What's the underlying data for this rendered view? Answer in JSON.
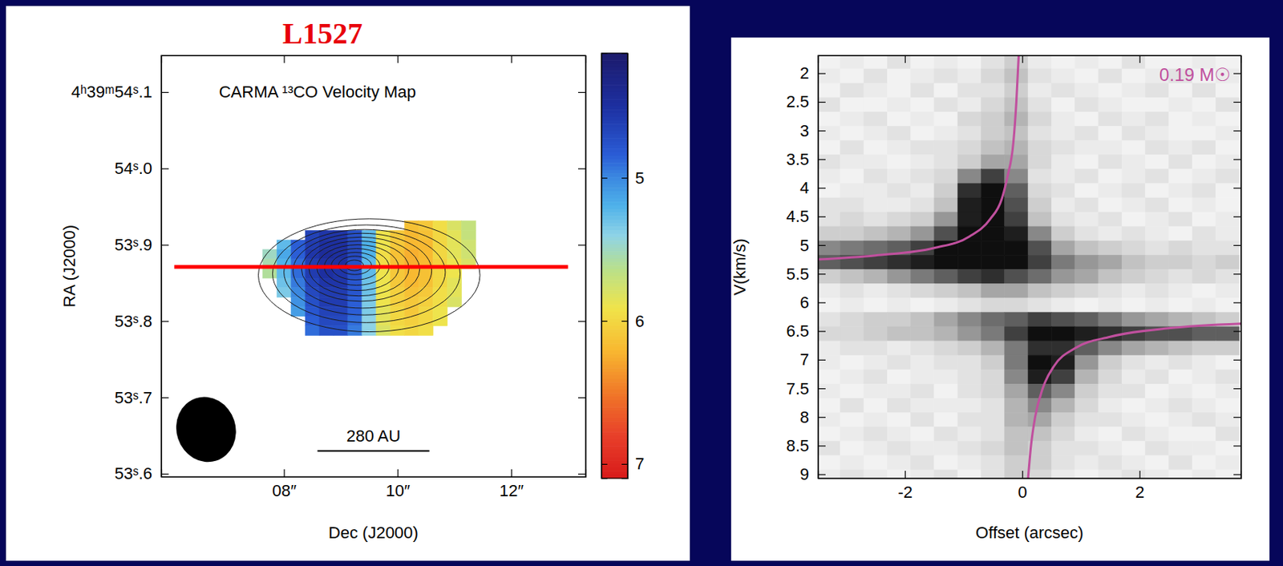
{
  "chart_data": [
    {
      "type": "heatmap",
      "annotation": "L1527",
      "title": "CARMA ¹³CO Velocity Map",
      "x_label": "Dec (J2000)",
      "y_label": "RA (J2000)",
      "xlim": [
        5.84,
        13.31
      ],
      "xticks": [
        {
          "value": 8,
          "label": "08″"
        },
        {
          "value": 10,
          "label": "10″"
        },
        {
          "value": 12,
          "label": "12″"
        }
      ],
      "ylim": [
        53.596,
        54.148
      ],
      "yticks": [
        {
          "value": 54.1,
          "label": "4ʰ39ᵐ54ˢ.1"
        },
        {
          "value": 54.0,
          "label": "54ˢ.0"
        },
        {
          "value": 53.9,
          "label": "53ˢ.9"
        },
        {
          "value": 53.8,
          "label": "53ˢ.8"
        },
        {
          "value": 53.7,
          "label": "53ˢ.7"
        },
        {
          "value": 53.6,
          "label": "53ˢ.6"
        }
      ],
      "x": [
        7.75,
        8.0,
        8.25,
        8.5,
        8.75,
        9.0,
        9.25,
        9.5,
        9.75,
        10.0,
        10.25,
        10.5,
        10.75,
        11.0,
        11.25
      ],
      "y": [
        53.925,
        53.9125,
        53.9,
        53.8875,
        53.875,
        53.8625,
        53.85,
        53.8375,
        53.825,
        53.8125,
        53.8,
        53.7875
      ],
      "values": [
        [
          null,
          null,
          null,
          null,
          null,
          null,
          null,
          null,
          null,
          null,
          6.15,
          6.1,
          5.95,
          5.8,
          5.7
        ],
        [
          null,
          null,
          null,
          4.65,
          4.55,
          4.55,
          4.75,
          5.25,
          5.9,
          6.1,
          6.2,
          6.15,
          6.0,
          5.85,
          5.7
        ],
        [
          null,
          5.25,
          4.85,
          4.6,
          4.5,
          4.5,
          4.7,
          5.2,
          5.9,
          6.1,
          6.2,
          6.2,
          6.0,
          5.85,
          5.75
        ],
        [
          5.5,
          5.15,
          4.85,
          4.55,
          4.45,
          4.5,
          4.7,
          5.2,
          5.95,
          6.15,
          6.25,
          6.2,
          6.0,
          5.85,
          5.75
        ],
        [
          5.55,
          5.2,
          4.9,
          4.6,
          4.5,
          4.5,
          4.75,
          5.25,
          5.95,
          6.15,
          6.25,
          6.2,
          6.05,
          5.9,
          5.8
        ],
        [
          5.6,
          5.25,
          4.9,
          4.6,
          4.5,
          4.55,
          4.75,
          5.25,
          5.9,
          6.1,
          6.2,
          6.15,
          6.0,
          5.9,
          null
        ],
        [
          null,
          5.3,
          4.95,
          4.65,
          4.55,
          4.55,
          4.8,
          5.3,
          5.9,
          6.1,
          6.2,
          6.15,
          6.0,
          5.85,
          null
        ],
        [
          null,
          5.35,
          5.0,
          4.7,
          4.6,
          4.6,
          4.8,
          5.3,
          5.9,
          6.05,
          6.15,
          6.1,
          5.95,
          5.85,
          null
        ],
        [
          null,
          null,
          5.05,
          4.75,
          4.6,
          4.6,
          4.85,
          5.35,
          5.9,
          6.05,
          6.1,
          6.05,
          5.95,
          5.8,
          null
        ],
        [
          null,
          null,
          5.1,
          4.8,
          4.65,
          4.65,
          4.85,
          5.35,
          5.85,
          6.0,
          6.1,
          6.0,
          5.9,
          null,
          null
        ],
        [
          null,
          null,
          null,
          4.85,
          4.7,
          4.7,
          4.9,
          5.4,
          5.85,
          6.0,
          6.05,
          6.0,
          5.9,
          null,
          null
        ],
        [
          null,
          null,
          null,
          4.9,
          4.75,
          4.75,
          4.95,
          5.4,
          5.8,
          5.95,
          6.0,
          5.95,
          null,
          null,
          null
        ]
      ],
      "colorbar": {
        "range": [
          4.13,
          7.1
        ],
        "ticks": [
          5,
          6,
          7
        ]
      },
      "contours": [
        {
          "center": [
            9.5,
            53.86
          ],
          "rx": 1.95,
          "ry": 0.074
        },
        {
          "center": [
            9.45,
            53.862
          ],
          "rx": 1.65,
          "ry": 0.064
        },
        {
          "center": [
            9.42,
            53.864
          ],
          "rx": 1.42,
          "ry": 0.056
        },
        {
          "center": [
            9.38,
            53.866
          ],
          "rx": 1.22,
          "ry": 0.049
        },
        {
          "center": [
            9.35,
            53.868
          ],
          "rx": 1.04,
          "ry": 0.042
        },
        {
          "center": [
            9.32,
            53.869
          ],
          "rx": 0.88,
          "ry": 0.036
        },
        {
          "center": [
            9.3,
            53.87
          ],
          "rx": 0.72,
          "ry": 0.03
        },
        {
          "center": [
            9.28,
            53.871
          ],
          "rx": 0.57,
          "ry": 0.024
        },
        {
          "center": [
            9.26,
            53.872
          ],
          "rx": 0.43,
          "ry": 0.018
        },
        {
          "center": [
            9.25,
            53.873
          ],
          "rx": 0.29,
          "ry": 0.012
        },
        {
          "center": [
            9.24,
            53.873
          ],
          "rx": 0.16,
          "ry": 0.007
        }
      ],
      "cut": {
        "x": [
          6.07,
          13.0
        ],
        "y": 53.871,
        "color": "#ff0000"
      },
      "beam": {
        "center": [
          6.63,
          53.658
        ],
        "width": 1.04,
        "height": 0.086
      },
      "scale_bar": {
        "label": "280 AU",
        "x": [
          8.59,
          10.56
        ],
        "y": 53.63
      }
    },
    {
      "type": "image",
      "annotation": "0.19 M☉",
      "x_label": "Offset (arcsec)",
      "y_label": "V(km/s)",
      "xlim": [
        -3.48,
        3.73
      ],
      "xticks": [
        -2,
        0,
        2
      ],
      "ylim": [
        9.07,
        1.69
      ],
      "yticks": [
        2,
        2.5,
        3,
        3.5,
        4,
        4.5,
        5,
        5.5,
        6,
        6.5,
        7,
        7.5,
        8,
        8.5,
        9
      ],
      "x": [
        -3.3,
        -2.9,
        -2.5,
        -2.1,
        -1.7,
        -1.3,
        -0.9,
        -0.5,
        -0.1,
        0.3,
        0.7,
        1.1,
        1.5,
        1.9,
        2.3,
        2.7,
        3.1,
        3.5
      ],
      "y": [
        1.8,
        2.05,
        2.3,
        2.55,
        2.8,
        3.05,
        3.3,
        3.55,
        3.8,
        4.05,
        4.3,
        4.55,
        4.8,
        5.05,
        5.3,
        5.55,
        5.8,
        6.05,
        6.3,
        6.55,
        6.8,
        7.05,
        7.3,
        7.55,
        7.8,
        8.05,
        8.3,
        8.55,
        8.8,
        9.05
      ],
      "intensity_range": [
        0,
        1
      ],
      "values": [
        [
          0.1,
          0.15,
          0.1,
          0.2,
          0.1,
          0.15,
          0.1,
          0.2,
          0.3,
          0.15,
          0.1,
          0.15,
          0.1,
          0.2,
          0.1,
          0.1,
          0.15,
          0.1
        ],
        [
          0.15,
          0.1,
          0.2,
          0.1,
          0.15,
          0.2,
          0.15,
          0.25,
          0.35,
          0.2,
          0.15,
          0.1,
          0.2,
          0.1,
          0.15,
          0.2,
          0.1,
          0.15
        ],
        [
          0.1,
          0.2,
          0.15,
          0.1,
          0.2,
          0.1,
          0.2,
          0.2,
          0.3,
          0.15,
          0.2,
          0.15,
          0.1,
          0.15,
          0.2,
          0.1,
          0.2,
          0.1
        ],
        [
          0.2,
          0.1,
          0.1,
          0.15,
          0.1,
          0.2,
          0.15,
          0.25,
          0.35,
          0.2,
          0.1,
          0.2,
          0.15,
          0.1,
          0.1,
          0.15,
          0.1,
          0.2
        ],
        [
          0.1,
          0.15,
          0.2,
          0.1,
          0.15,
          0.1,
          0.25,
          0.3,
          0.4,
          0.25,
          0.15,
          0.1,
          0.2,
          0.15,
          0.2,
          0.1,
          0.15,
          0.1
        ],
        [
          0.15,
          0.1,
          0.15,
          0.2,
          0.1,
          0.15,
          0.2,
          0.3,
          0.35,
          0.2,
          0.15,
          0.2,
          0.1,
          0.2,
          0.15,
          0.1,
          0.1,
          0.15
        ],
        [
          0.1,
          0.2,
          0.1,
          0.15,
          0.2,
          0.2,
          0.25,
          0.35,
          0.4,
          0.25,
          0.2,
          0.15,
          0.15,
          0.1,
          0.2,
          0.15,
          0.2,
          0.1
        ],
        [
          0.2,
          0.15,
          0.15,
          0.1,
          0.15,
          0.2,
          0.3,
          0.45,
          0.45,
          0.25,
          0.15,
          0.1,
          0.2,
          0.15,
          0.1,
          0.2,
          0.1,
          0.15
        ],
        [
          0.15,
          0.1,
          0.2,
          0.15,
          0.2,
          0.25,
          0.55,
          0.8,
          0.55,
          0.2,
          0.15,
          0.2,
          0.1,
          0.15,
          0.2,
          0.1,
          0.15,
          0.2
        ],
        [
          0.1,
          0.15,
          0.15,
          0.2,
          0.15,
          0.3,
          0.85,
          0.95,
          0.7,
          0.25,
          0.2,
          0.1,
          0.15,
          0.2,
          0.1,
          0.15,
          0.2,
          0.1
        ],
        [
          0.2,
          0.2,
          0.15,
          0.15,
          0.2,
          0.35,
          0.9,
          0.95,
          0.75,
          0.3,
          0.15,
          0.2,
          0.1,
          0.15,
          0.2,
          0.1,
          0.15,
          0.1
        ],
        [
          0.2,
          0.25,
          0.2,
          0.25,
          0.3,
          0.5,
          0.9,
          0.95,
          0.8,
          0.35,
          0.2,
          0.15,
          0.2,
          0.1,
          0.15,
          0.2,
          0.1,
          0.15
        ],
        [
          0.3,
          0.3,
          0.35,
          0.4,
          0.5,
          0.75,
          0.95,
          0.95,
          0.9,
          0.55,
          0.3,
          0.2,
          0.15,
          0.2,
          0.15,
          0.1,
          0.2,
          0.15
        ],
        [
          0.55,
          0.6,
          0.65,
          0.7,
          0.8,
          0.95,
          0.95,
          0.95,
          0.95,
          0.75,
          0.45,
          0.35,
          0.3,
          0.25,
          0.2,
          0.25,
          0.2,
          0.2
        ],
        [
          0.7,
          0.75,
          0.8,
          0.85,
          0.9,
          0.95,
          0.95,
          0.95,
          0.95,
          0.8,
          0.6,
          0.5,
          0.45,
          0.35,
          0.3,
          0.3,
          0.25,
          0.3
        ],
        [
          0.3,
          0.35,
          0.4,
          0.5,
          0.6,
          0.7,
          0.8,
          0.85,
          0.75,
          0.65,
          0.5,
          0.45,
          0.35,
          0.3,
          0.25,
          0.2,
          0.25,
          0.2
        ],
        [
          0.15,
          0.2,
          0.15,
          0.2,
          0.25,
          0.3,
          0.35,
          0.45,
          0.45,
          0.35,
          0.3,
          0.25,
          0.2,
          0.15,
          0.2,
          0.15,
          0.1,
          0.15
        ],
        [
          0.1,
          0.15,
          0.1,
          0.15,
          0.1,
          0.15,
          0.2,
          0.25,
          0.25,
          0.2,
          0.15,
          0.1,
          0.15,
          0.1,
          0.15,
          0.1,
          0.15,
          0.1
        ],
        [
          0.2,
          0.25,
          0.3,
          0.3,
          0.35,
          0.45,
          0.55,
          0.65,
          0.7,
          0.8,
          0.75,
          0.7,
          0.6,
          0.5,
          0.45,
          0.4,
          0.35,
          0.3
        ],
        [
          0.25,
          0.25,
          0.3,
          0.35,
          0.35,
          0.4,
          0.5,
          0.6,
          0.8,
          0.95,
          0.95,
          0.9,
          0.85,
          0.8,
          0.75,
          0.75,
          0.7,
          0.7
        ],
        [
          0.15,
          0.2,
          0.2,
          0.15,
          0.2,
          0.25,
          0.3,
          0.4,
          0.6,
          0.85,
          0.85,
          0.7,
          0.55,
          0.45,
          0.4,
          0.35,
          0.3,
          0.3
        ],
        [
          0.15,
          0.1,
          0.15,
          0.2,
          0.15,
          0.2,
          0.2,
          0.3,
          0.6,
          0.95,
          0.9,
          0.5,
          0.3,
          0.2,
          0.15,
          0.2,
          0.15,
          0.1
        ],
        [
          0.1,
          0.15,
          0.2,
          0.1,
          0.15,
          0.15,
          0.2,
          0.25,
          0.55,
          0.9,
          0.8,
          0.4,
          0.25,
          0.15,
          0.2,
          0.1,
          0.15,
          0.2
        ],
        [
          0.15,
          0.1,
          0.15,
          0.15,
          0.2,
          0.1,
          0.2,
          0.25,
          0.45,
          0.7,
          0.55,
          0.3,
          0.2,
          0.2,
          0.1,
          0.15,
          0.1,
          0.15
        ],
        [
          0.1,
          0.2,
          0.1,
          0.2,
          0.15,
          0.15,
          0.15,
          0.2,
          0.4,
          0.55,
          0.4,
          0.25,
          0.15,
          0.1,
          0.15,
          0.2,
          0.15,
          0.1
        ],
        [
          0.15,
          0.1,
          0.15,
          0.1,
          0.2,
          0.1,
          0.2,
          0.2,
          0.4,
          0.45,
          0.3,
          0.2,
          0.2,
          0.15,
          0.1,
          0.15,
          0.2,
          0.15
        ],
        [
          0.1,
          0.15,
          0.2,
          0.15,
          0.1,
          0.2,
          0.15,
          0.2,
          0.35,
          0.35,
          0.25,
          0.15,
          0.1,
          0.2,
          0.15,
          0.1,
          0.1,
          0.2
        ],
        [
          0.2,
          0.1,
          0.15,
          0.2,
          0.15,
          0.15,
          0.2,
          0.25,
          0.35,
          0.3,
          0.2,
          0.2,
          0.15,
          0.1,
          0.2,
          0.15,
          0.15,
          0.1
        ],
        [
          0.1,
          0.15,
          0.1,
          0.15,
          0.2,
          0.1,
          0.15,
          0.2,
          0.3,
          0.3,
          0.2,
          0.15,
          0.2,
          0.15,
          0.1,
          0.2,
          0.1,
          0.15
        ],
        [
          0.15,
          0.2,
          0.15,
          0.1,
          0.15,
          0.2,
          0.1,
          0.2,
          0.3,
          0.25,
          0.15,
          0.1,
          0.15,
          0.2,
          0.15,
          0.1,
          0.15,
          0.1
        ]
      ],
      "series": [
        {
          "type": "line",
          "color": "#c0509e",
          "x": [
            -3.48,
            -2.5,
            -1.5,
            -0.9,
            -0.55,
            -0.35,
            -0.25,
            -0.15,
            -0.1,
            -0.06
          ],
          "values": [
            5.25,
            5.18,
            5.05,
            4.85,
            4.55,
            4.2,
            3.8,
            3.2,
            2.5,
            1.69
          ]
        },
        {
          "type": "line",
          "color": "#c0509e",
          "x": [
            0.1,
            0.15,
            0.22,
            0.35,
            0.55,
            0.9,
            1.5,
            2.5,
            3.73
          ],
          "values": [
            9.07,
            8.5,
            8.0,
            7.5,
            7.1,
            6.8,
            6.6,
            6.45,
            6.37
          ]
        }
      ]
    }
  ]
}
